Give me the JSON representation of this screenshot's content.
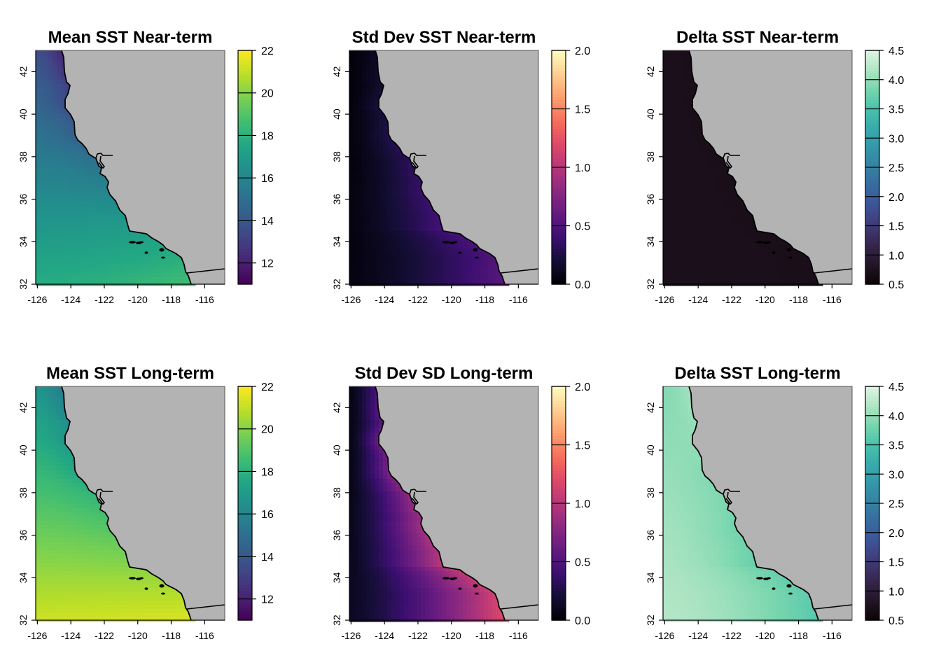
{
  "chart_data": [
    {
      "type": "heatmap",
      "title": "Mean SST Near-term",
      "xlim": [
        -126.1,
        -114.8
      ],
      "ylim": [
        32,
        43
      ],
      "x_ticks": [
        "-126",
        "-124",
        "-122",
        "-120",
        "-118",
        "-116"
      ],
      "x_tick_values": [
        -126,
        -124,
        -122,
        -120,
        -118,
        -116
      ],
      "y_ticks": [
        "32",
        "34",
        "36",
        "38",
        "40",
        "42"
      ],
      "y_tick_values": [
        32,
        34,
        36,
        38,
        40,
        42
      ],
      "colorbar": {
        "palette": "viridis",
        "range": [
          11,
          22
        ],
        "ticks": [
          "12",
          "14",
          "16",
          "18",
          "20",
          "22"
        ],
        "tick_values": [
          12,
          14,
          16,
          18,
          20,
          22
        ]
      },
      "field": {
        "sw": 17.8,
        "nw": 13.6,
        "coast_north": 12.0,
        "coast_south": 18.6,
        "offshore_gradient": 0.9
      }
    },
    {
      "type": "heatmap",
      "title": "Std Dev SST Near-term",
      "xlim": [
        -126.1,
        -114.8
      ],
      "ylim": [
        32,
        43
      ],
      "x_ticks": [
        "-126",
        "-124",
        "-122",
        "-120",
        "-118",
        "-116"
      ],
      "x_tick_values": [
        -126,
        -124,
        -122,
        -120,
        -118,
        -116
      ],
      "y_ticks": [
        "32",
        "34",
        "36",
        "38",
        "40",
        "42"
      ],
      "y_tick_values": [
        32,
        34,
        36,
        38,
        40,
        42
      ],
      "colorbar": {
        "palette": "magma",
        "range": [
          0.0,
          2.0
        ],
        "ticks": [
          "0.0",
          "0.5",
          "1.0",
          "1.5",
          "2.0"
        ],
        "tick_values": [
          0.0,
          0.5,
          1.0,
          1.5,
          2.0
        ]
      },
      "field": {
        "sw": 0.05,
        "nw": 0.02,
        "coast_north": 0.12,
        "coast_south": 0.55,
        "offshore_gradient": -1
      }
    },
    {
      "type": "heatmap",
      "title": "Delta SST Near-term",
      "xlim": [
        -126.1,
        -114.8
      ],
      "ylim": [
        32,
        43
      ],
      "x_ticks": [
        "-126",
        "-124",
        "-122",
        "-120",
        "-118",
        "-116"
      ],
      "x_tick_values": [
        -126,
        -124,
        -122,
        -120,
        -118,
        -116
      ],
      "y_ticks": [
        "32",
        "34",
        "36",
        "38",
        "40",
        "42"
      ],
      "y_tick_values": [
        32,
        34,
        36,
        38,
        40,
        42
      ],
      "colorbar": {
        "palette": "mako",
        "range": [
          0.5,
          4.5
        ],
        "ticks": [
          "0.5",
          "1.0",
          "1.5",
          "2.0",
          "2.5",
          "3.0",
          "3.5",
          "4.0",
          "4.5"
        ],
        "tick_values": [
          0.5,
          1.0,
          1.5,
          2.0,
          2.5,
          3.0,
          3.5,
          4.0,
          4.5
        ]
      },
      "field": {
        "sw": 0.72,
        "nw": 0.72,
        "coast_north": 0.7,
        "coast_south": 0.7,
        "offshore_gradient": 0
      }
    },
    {
      "type": "heatmap",
      "title": "Mean SST Long-term",
      "xlim": [
        -126.1,
        -114.8
      ],
      "ylim": [
        32,
        43
      ],
      "x_ticks": [
        "-126",
        "-124",
        "-122",
        "-120",
        "-118",
        "-116"
      ],
      "x_tick_values": [
        -126,
        -124,
        -122,
        -120,
        -118,
        -116
      ],
      "y_ticks": [
        "32",
        "34",
        "36",
        "38",
        "40",
        "42"
      ],
      "y_tick_values": [
        32,
        34,
        36,
        38,
        40,
        42
      ],
      "colorbar": {
        "palette": "viridis",
        "range": [
          11,
          22
        ],
        "ticks": [
          "12",
          "14",
          "16",
          "18",
          "20",
          "22"
        ],
        "tick_values": [
          12,
          14,
          16,
          18,
          20,
          22
        ]
      },
      "field": {
        "sw": 21.2,
        "nw": 16.6,
        "coast_north": 15.4,
        "coast_south": 21.4,
        "offshore_gradient": 0.9
      }
    },
    {
      "type": "heatmap",
      "title": "Std Dev SD Long-term",
      "xlim": [
        -126.1,
        -114.8
      ],
      "ylim": [
        32,
        43
      ],
      "x_ticks": [
        "-126",
        "-124",
        "-122",
        "-120",
        "-118",
        "-116"
      ],
      "x_tick_values": [
        -126,
        -124,
        -122,
        -120,
        -118,
        -116
      ],
      "y_ticks": [
        "32",
        "34",
        "36",
        "38",
        "40",
        "42"
      ],
      "y_tick_values": [
        32,
        34,
        36,
        38,
        40,
        42
      ],
      "colorbar": {
        "palette": "magma",
        "range": [
          0.0,
          2.0
        ],
        "ticks": [
          "0.0",
          "0.5",
          "1.0",
          "1.5",
          "2.0"
        ],
        "tick_values": [
          0.0,
          0.5,
          1.0,
          1.5,
          2.0
        ]
      },
      "field": {
        "sw": 0.12,
        "nw": 0.05,
        "coast_north": 0.45,
        "coast_south": 1.2,
        "offshore_gradient": -1
      }
    },
    {
      "type": "heatmap",
      "title": "Delta SST Long-term",
      "xlim": [
        -126.1,
        -114.8
      ],
      "ylim": [
        32,
        43
      ],
      "x_ticks": [
        "-126",
        "-124",
        "-122",
        "-120",
        "-118",
        "-116"
      ],
      "x_tick_values": [
        -126,
        -124,
        -122,
        -120,
        -118,
        -116
      ],
      "y_ticks": [
        "32",
        "34",
        "36",
        "38",
        "40",
        "42"
      ],
      "y_tick_values": [
        32,
        34,
        36,
        38,
        40,
        42
      ],
      "colorbar": {
        "palette": "mako",
        "range": [
          0.5,
          4.5
        ],
        "ticks": [
          "0.5",
          "1.0",
          "1.5",
          "2.0",
          "2.5",
          "3.0",
          "3.5",
          "4.0",
          "4.5"
        ],
        "tick_values": [
          0.5,
          1.0,
          1.5,
          2.0,
          2.5,
          3.0,
          3.5,
          4.0,
          4.5
        ]
      },
      "field": {
        "sw": 4.2,
        "nw": 3.9,
        "coast_north": 4.1,
        "coast_south": 3.6,
        "offshore_gradient": 0.4
      }
    }
  ],
  "colors": {
    "land": "#b3b3b3",
    "coastline": "#000000",
    "background": "#ffffff"
  }
}
